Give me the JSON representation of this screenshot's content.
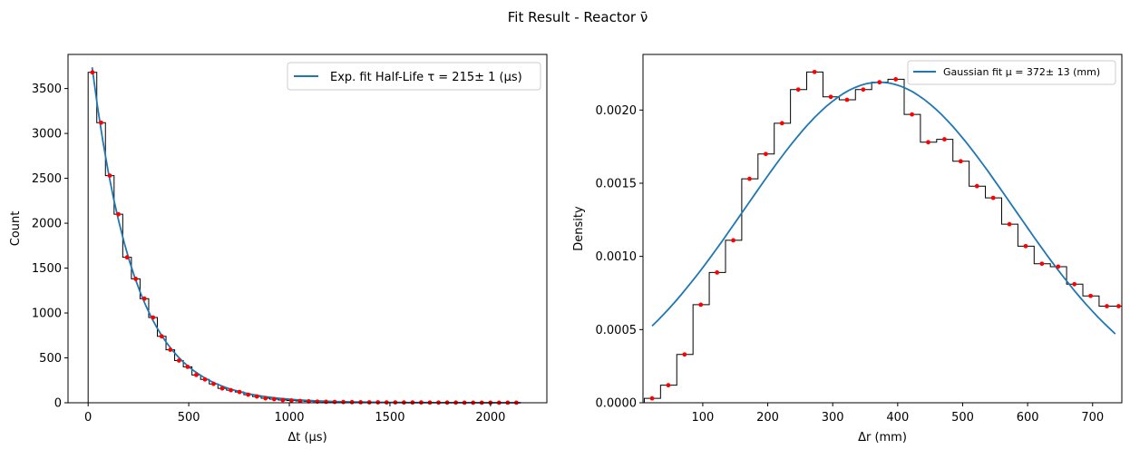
{
  "figure": {
    "suptitle": "Fit Result - Reactor ν̄"
  },
  "chart_data": [
    {
      "type": "histogram",
      "xlabel": "Δt (μs)",
      "ylabel": "Count",
      "xlim": [
        -100,
        2280
      ],
      "ylim": [
        0,
        3880
      ],
      "xticks": [
        0,
        500,
        1000,
        1500,
        2000
      ],
      "yticks": [
        0,
        500,
        1000,
        1500,
        2000,
        2500,
        3000,
        3500
      ],
      "xtick_labels": [
        "0",
        "500",
        "1000",
        "1500",
        "2000"
      ],
      "ytick_labels": [
        "0",
        "500",
        "1000",
        "1500",
        "2000",
        "2500",
        "3000",
        "3500"
      ],
      "legend": {
        "label": "Exp. fit Half-Life τ = 215± 1 (μs)",
        "placement": "top-right"
      },
      "colors": {
        "histogram": "#000000",
        "points": "#ff0000",
        "fit": "#1f77b4"
      },
      "bin_edges": [
        0,
        43,
        86,
        129,
        172,
        215,
        258,
        301,
        344,
        387,
        430,
        473,
        516,
        559,
        602,
        645,
        688,
        731,
        774,
        817,
        860,
        903,
        946,
        989,
        1032,
        1075,
        1118,
        1161,
        1204,
        1247,
        1290,
        1333,
        1376,
        1419,
        1462,
        1505,
        1548,
        1591,
        1634,
        1677,
        1720,
        1763,
        1806,
        1849,
        1892,
        1935,
        1978,
        2021,
        2064,
        2107,
        2150
      ],
      "counts": [
        3680,
        3120,
        2530,
        2100,
        1620,
        1380,
        1160,
        950,
        740,
        590,
        470,
        400,
        310,
        260,
        210,
        160,
        140,
        120,
        90,
        70,
        50,
        40,
        30,
        25,
        20,
        16,
        13,
        11,
        9,
        8,
        7,
        6,
        5,
        5,
        4,
        4,
        3,
        3,
        3,
        2,
        2,
        2,
        2,
        1,
        1,
        1,
        1,
        1,
        1,
        1
      ],
      "fit": {
        "type": "exponential",
        "amplitude": 3900,
        "tau": 215,
        "x_range": [
          20,
          2150
        ]
      }
    },
    {
      "type": "histogram",
      "xlabel": "Δr (mm)",
      "ylabel": "Density",
      "xlim": [
        8,
        745
      ],
      "ylim": [
        0,
        0.00238
      ],
      "xticks": [
        100,
        200,
        300,
        400,
        500,
        600,
        700
      ],
      "yticks": [
        0,
        0.0005,
        0.001,
        0.0015,
        0.002
      ],
      "xtick_labels": [
        "100",
        "200",
        "300",
        "400",
        "500",
        "600",
        "700"
      ],
      "ytick_labels": [
        "0.0000",
        "0.0005",
        "0.0010",
        "0.0015",
        "0.0020"
      ],
      "legend": {
        "label": "Gaussian fit μ = 372± 13 (mm)",
        "placement": "top-right"
      },
      "colors": {
        "histogram": "#000000",
        "points": "#ff0000",
        "fit": "#1f77b4"
      },
      "bin_edges": [
        10,
        35,
        60,
        85,
        110,
        135,
        160,
        185,
        210,
        235,
        260,
        285,
        310,
        335,
        360,
        385,
        410,
        435,
        460,
        485,
        510,
        535,
        560,
        585,
        610,
        635,
        660,
        685,
        710,
        735,
        745
      ],
      "density": [
        3e-05,
        0.00012,
        0.00033,
        0.00067,
        0.00089,
        0.00111,
        0.00153,
        0.0017,
        0.00191,
        0.00214,
        0.00226,
        0.00209,
        0.00207,
        0.00214,
        0.00219,
        0.00221,
        0.00197,
        0.00178,
        0.0018,
        0.00165,
        0.00148,
        0.0014,
        0.00122,
        0.00107,
        0.00095,
        0.00093,
        0.00081,
        0.00073,
        0.00066,
        0.00066
      ],
      "points_x": [
        22,
        47,
        72,
        97,
        122,
        147,
        172,
        197,
        222,
        247,
        272,
        297,
        322,
        347,
        372,
        397,
        422,
        447,
        472,
        497,
        522,
        547,
        572,
        597,
        622,
        647,
        672,
        697,
        722,
        740
      ],
      "fit": {
        "type": "gaussian",
        "amplitude": 0.00219,
        "mu": 372,
        "sigma": 207,
        "x_range": [
          22,
          735
        ]
      }
    }
  ]
}
